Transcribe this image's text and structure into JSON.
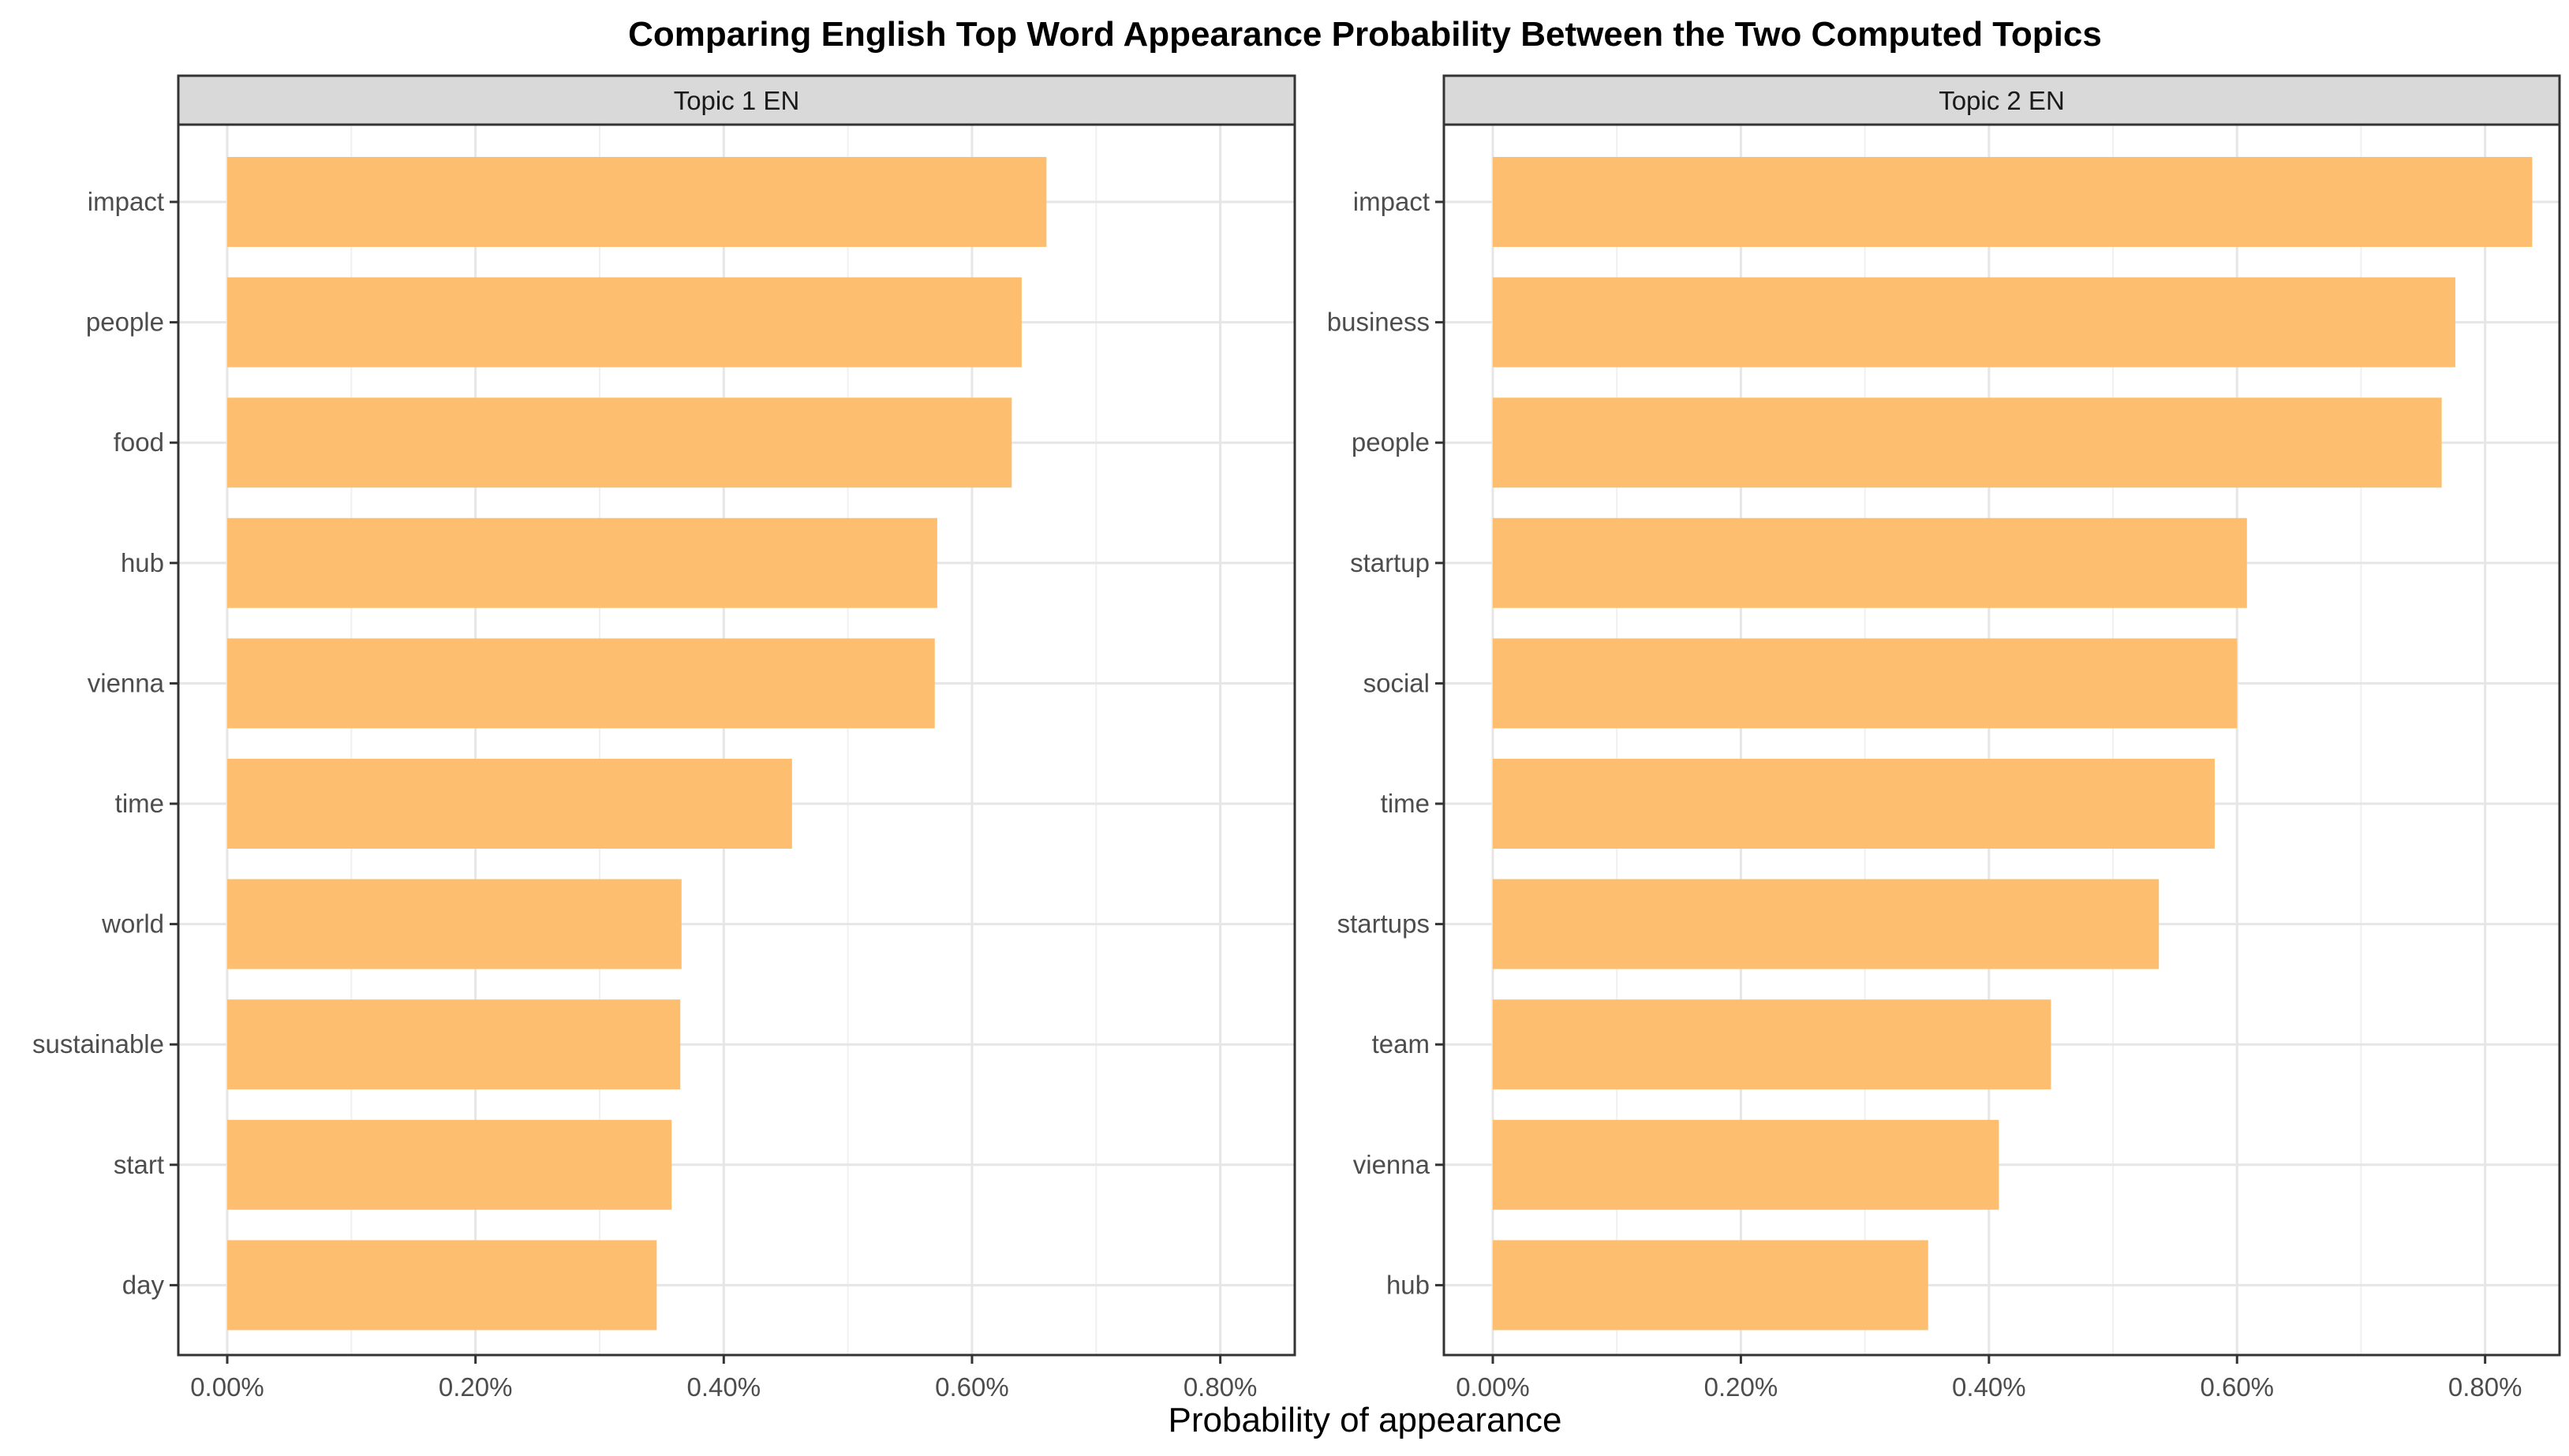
{
  "chart_data": {
    "type": "bar",
    "orientation": "horizontal",
    "title": "Comparing English Top Word Appearance Probability Between the Two Computed Topics",
    "xlabel": "Probability of appearance",
    "ylabel": "",
    "xlim": [
      0,
      0.0086
    ],
    "x_ticks": [
      0,
      0.002,
      0.004,
      0.006,
      0.008
    ],
    "x_tick_labels": [
      "0.00%",
      "0.20%",
      "0.40%",
      "0.60%",
      "0.80%"
    ],
    "grid": true,
    "bar_color": "#FDBF6F",
    "panels": [
      {
        "label": "Topic 1 EN",
        "categories": [
          "impact",
          "people",
          "food",
          "hub",
          "vienna",
          "time",
          "world",
          "sustainable",
          "start",
          "day"
        ],
        "values": [
          0.0066,
          0.0064,
          0.00632,
          0.00572,
          0.0057,
          0.00455,
          0.00366,
          0.00365,
          0.00358,
          0.00346
        ]
      },
      {
        "label": "Topic 2 EN",
        "categories": [
          "impact",
          "business",
          "people",
          "startup",
          "social",
          "time",
          "startups",
          "team",
          "vienna",
          "hub"
        ],
        "values": [
          0.00838,
          0.00776,
          0.00765,
          0.00608,
          0.006,
          0.00582,
          0.00537,
          0.0045,
          0.00408,
          0.00351
        ]
      }
    ]
  }
}
